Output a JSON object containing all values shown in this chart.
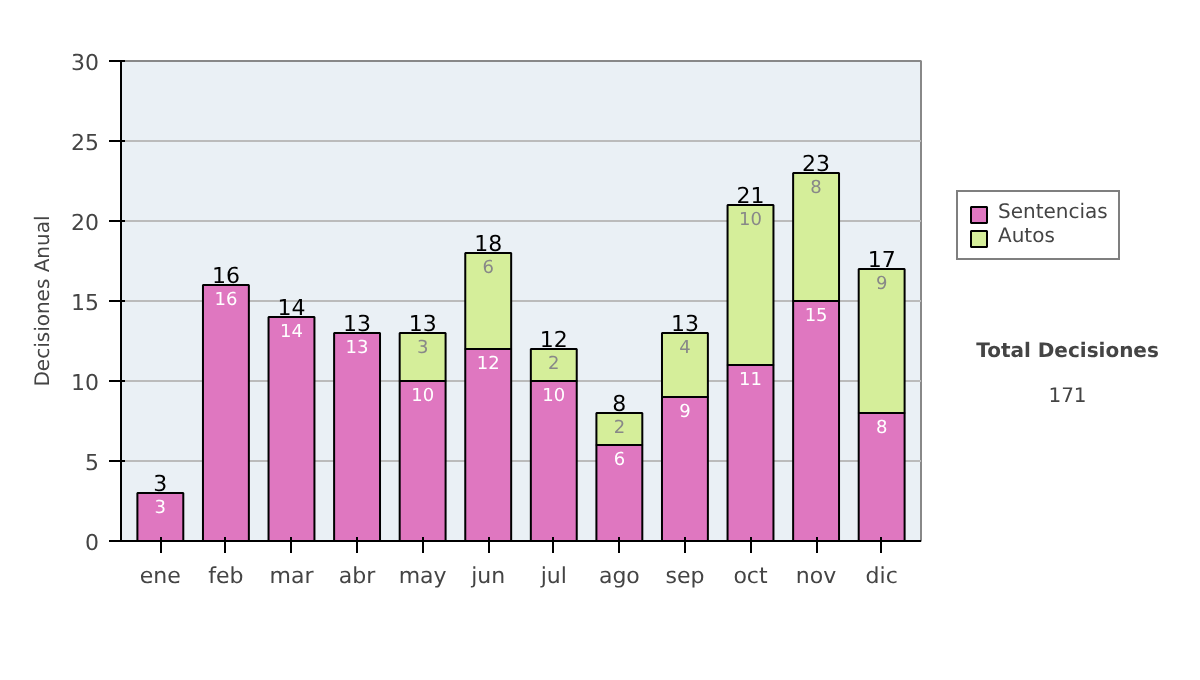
{
  "chart_data": {
    "type": "bar",
    "stacked": true,
    "ylabel": "Decisiones Anual",
    "categories": [
      "ene",
      "feb",
      "mar",
      "abr",
      "may",
      "jun",
      "jul",
      "ago",
      "sep",
      "oct",
      "nov",
      "dic"
    ],
    "series": [
      {
        "name": "Sentencias",
        "color": "#df77c0",
        "values": [
          3,
          16,
          14,
          13,
          10,
          12,
          10,
          6,
          9,
          11,
          15,
          8
        ]
      },
      {
        "name": "Autos",
        "color": "#d5ee9a",
        "values": [
          null,
          null,
          null,
          null,
          3,
          6,
          2,
          2,
          4,
          10,
          8,
          9
        ]
      }
    ],
    "ylim": [
      0,
      30
    ],
    "yticks": [
      0,
      5,
      10,
      15,
      20,
      25,
      30
    ],
    "grid": "y",
    "legend": "right",
    "data_labels": true,
    "totals": [
      "3",
      "16",
      "14",
      "13",
      "13",
      "18",
      "12",
      "8",
      "13",
      "21",
      "23",
      "17"
    ],
    "annotations": [
      "Total Decisiones",
      "171"
    ]
  }
}
